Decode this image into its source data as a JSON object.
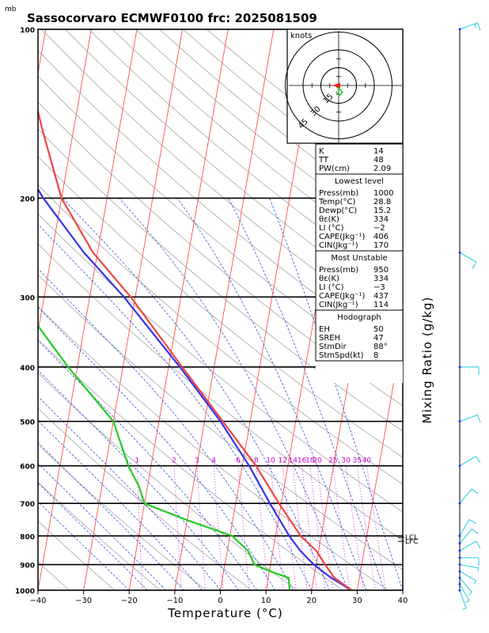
{
  "chart_data": {
    "type": "skew-t log-p",
    "title": "Sassocorvaro ECMWF0100 frc: 2025081509",
    "y_unit": "mb",
    "xlabel": "Temperature (°C)",
    "right_label": "Mixing Ratio (g/kg)",
    "x_ticks": [
      -40,
      -30,
      -20,
      -10,
      0,
      10,
      20,
      30,
      40
    ],
    "p_ticks": [
      100,
      200,
      300,
      400,
      500,
      600,
      700,
      800,
      900,
      1000
    ],
    "xlim": [
      -40,
      40
    ],
    "plim": [
      100,
      1000
    ],
    "mixing_ratio_labels": [
      "1",
      "2",
      "3",
      "4",
      "6",
      "8",
      "10",
      "12",
      "14",
      "16",
      "18",
      "20",
      "25",
      "30",
      "35",
      "40"
    ],
    "level_markers": [
      "LCL",
      "LFC"
    ],
    "temperature_profile": [
      {
        "p": 1000,
        "t": 28.8
      },
      {
        "p": 950,
        "t": 24.5
      },
      {
        "p": 900,
        "t": 22.0
      },
      {
        "p": 850,
        "t": 19.5
      },
      {
        "p": 800,
        "t": 15.5
      },
      {
        "p": 700,
        "t": 9.5
      },
      {
        "p": 600,
        "t": 3.0
      },
      {
        "p": 500,
        "t": -6.0
      },
      {
        "p": 400,
        "t": -17.0
      },
      {
        "p": 300,
        "t": -31.0
      },
      {
        "p": 250,
        "t": -41.0
      },
      {
        "p": 200,
        "t": -50.0
      },
      {
        "p": 150,
        "t": -57.0
      },
      {
        "p": 100,
        "t": -66.0
      }
    ],
    "dewpoint_profile": [
      {
        "p": 1000,
        "t": 15.2
      },
      {
        "p": 950,
        "t": 14.5
      },
      {
        "p": 930,
        "t": 11.0
      },
      {
        "p": 900,
        "t": 6.5
      },
      {
        "p": 850,
        "t": 4.5
      },
      {
        "p": 800,
        "t": 0.5
      },
      {
        "p": 750,
        "t": -10.0
      },
      {
        "p": 700,
        "t": -20.0
      },
      {
        "p": 650,
        "t": -22.0
      },
      {
        "p": 600,
        "t": -25.0
      },
      {
        "p": 500,
        "t": -30.0
      },
      {
        "p": 400,
        "t": -42.0
      },
      {
        "p": 300,
        "t": -56.0
      },
      {
        "p": 250,
        "t": -64.0
      },
      {
        "p": 200,
        "t": -71.0
      },
      {
        "p": 150,
        "t": -79.0
      },
      {
        "p": 100,
        "t": -87.0
      }
    ],
    "parcel_profile": [
      {
        "p": 1000,
        "t": 28.8
      },
      {
        "p": 950,
        "t": 23.8
      },
      {
        "p": 900,
        "t": 19.5
      },
      {
        "p": 850,
        "t": 16.0
      },
      {
        "p": 800,
        "t": 13.0
      },
      {
        "p": 700,
        "t": 7.5
      },
      {
        "p": 600,
        "t": 1.5
      },
      {
        "p": 500,
        "t": -6.5
      },
      {
        "p": 400,
        "t": -17.5
      },
      {
        "p": 300,
        "t": -32.5
      },
      {
        "p": 250,
        "t": -43.0
      },
      {
        "p": 200,
        "t": -54.0
      },
      {
        "p": 150,
        "t": -66.0
      },
      {
        "p": 100,
        "t": -80.0
      }
    ],
    "hodograph": {
      "unit": "knots",
      "ring_labels": [
        "15",
        "30",
        "45"
      ],
      "points": [
        [
          -3,
          1
        ],
        [
          -1,
          -2
        ],
        [
          2,
          -4
        ],
        [
          3,
          -6
        ],
        [
          1,
          -8
        ],
        [
          -1,
          -7
        ],
        [
          -2,
          -5
        ]
      ],
      "storm_motion": [
        -8,
        0
      ]
    },
    "winds": [
      {
        "p": 1000,
        "dir": 160,
        "spd": 5
      },
      {
        "p": 975,
        "dir": 150,
        "spd": 6
      },
      {
        "p": 950,
        "dir": 140,
        "spd": 8
      },
      {
        "p": 925,
        "dir": 120,
        "spd": 7
      },
      {
        "p": 900,
        "dir": 100,
        "spd": 8
      },
      {
        "p": 875,
        "dir": 90,
        "spd": 10
      },
      {
        "p": 850,
        "dir": 60,
        "spd": 10
      },
      {
        "p": 825,
        "dir": 40,
        "spd": 12
      },
      {
        "p": 800,
        "dir": 30,
        "spd": 14
      },
      {
        "p": 700,
        "dir": 40,
        "spd": 12
      },
      {
        "p": 600,
        "dir": 60,
        "spd": 10
      },
      {
        "p": 500,
        "dir": 70,
        "spd": 12
      },
      {
        "p": 400,
        "dir": 90,
        "spd": 10
      },
      {
        "p": 250,
        "dir": 120,
        "spd": 12
      },
      {
        "p": 100,
        "dir": 70,
        "spd": 15
      }
    ]
  },
  "indices": {
    "general": [
      {
        "label": "K",
        "value": "14"
      },
      {
        "label": "TT",
        "value": "48"
      },
      {
        "label": "PW(cm)",
        "value": "2.09"
      }
    ],
    "lowest": {
      "header": "Lowest level",
      "rows": [
        {
          "label": "Press(mb)",
          "value": "1000"
        },
        {
          "label": "Temp(°C)",
          "value": "28.8"
        },
        {
          "label": "Dewp(°C)",
          "value": "15.2"
        },
        {
          "label": "θε(K)",
          "value": "334"
        },
        {
          "label": "LI (°C)",
          "value": "−2"
        },
        {
          "label": "CAPE(Jkg⁻¹)",
          "value": "406"
        },
        {
          "label": "CIN(Jkg⁻¹)",
          "value": "170"
        }
      ]
    },
    "unstable": {
      "header": "Most Unstable",
      "rows": [
        {
          "label": "Press(mb)",
          "value": "950"
        },
        {
          "label": "θε(K)",
          "value": "334"
        },
        {
          "label": "LI (°C)",
          "value": "−3"
        },
        {
          "label": "CAPE(Jkg⁻¹)",
          "value": "437"
        },
        {
          "label": "CIN(Jkg⁻¹)",
          "value": "114"
        }
      ]
    },
    "hodo": {
      "header": "Hodograph",
      "rows": [
        {
          "label": "EH",
          "value": "50"
        },
        {
          "label": "SREH",
          "value": "47"
        },
        {
          "label": "StmDir",
          "value": "88°"
        },
        {
          "label": "StmSpd(kt)",
          "value": "8"
        }
      ]
    }
  },
  "colors": {
    "temperature": "#ee4444",
    "dewpoint": "#22cc22",
    "parcel": "#3333ee",
    "isotherm": "#ff3b3b",
    "dry_adiabat": "#999999",
    "moist_adiabat": "#3355dd",
    "mixing_ratio": "#cc00cc",
    "wind_barb": "#22c8dd",
    "frame": "#000000"
  }
}
